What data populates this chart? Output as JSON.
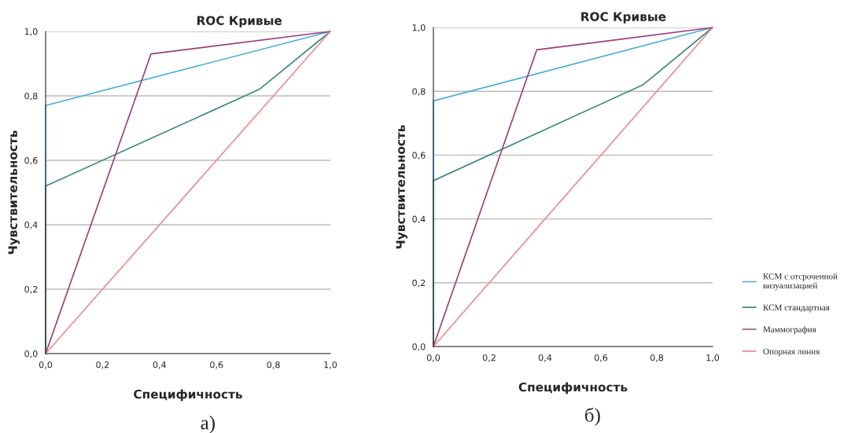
{
  "chart_data": [
    {
      "type": "line",
      "title": "ROC Кривые",
      "xlabel": "Специфичность",
      "ylabel": "Чувствительность",
      "annotations": [
        "а)"
      ],
      "xlim": [
        0,
        1
      ],
      "ylim": [
        0,
        1
      ],
      "xticks": [
        {
          "value": 0,
          "label": "0,0"
        },
        {
          "value": 0.2,
          "label": "0,2"
        },
        {
          "value": 0.4,
          "label": "0,4"
        },
        {
          "value": 0.6,
          "label": "0,6"
        },
        {
          "value": 0.8,
          "label": "0,8"
        },
        {
          "value": 1,
          "label": "1,0"
        }
      ],
      "yticks": [
        {
          "value": 0,
          "label": "0,0"
        },
        {
          "value": 0.2,
          "label": "0,2"
        },
        {
          "value": 0.4,
          "label": "0,4"
        },
        {
          "value": 0.6,
          "label": "0,6"
        },
        {
          "value": 0.8,
          "label": "0,8"
        },
        {
          "value": 1,
          "label": "1,0"
        }
      ],
      "grid": "y",
      "legend": false,
      "marker": "none",
      "line_style": "solid",
      "series": [
        {
          "color": "#4aaed8",
          "x": [
            0,
            0,
            1
          ],
          "values": [
            0,
            0.77,
            1
          ]
        },
        {
          "color": "#3d8a80",
          "x": [
            0,
            0,
            0.75,
            1
          ],
          "values": [
            0,
            0.52,
            0.82,
            1
          ]
        },
        {
          "color": "#9a3f78",
          "x": [
            0,
            0.37,
            1
          ],
          "values": [
            0,
            0.93,
            1
          ]
        },
        {
          "color": "#ef8a8a",
          "x": [
            0,
            1
          ],
          "values": [
            0,
            1
          ]
        }
      ]
    },
    {
      "type": "line",
      "title": "ROC Кривые",
      "xlabel": "Специфичность",
      "ylabel": "Чувствительность",
      "annotations": [
        "б)"
      ],
      "xlim": [
        0,
        1
      ],
      "ylim": [
        0,
        1
      ],
      "xticks": [
        {
          "value": 0,
          "label": "0,0"
        },
        {
          "value": 0.2,
          "label": "0,2"
        },
        {
          "value": 0.4,
          "label": "0,4"
        },
        {
          "value": 0.6,
          "label": "0,6"
        },
        {
          "value": 0.8,
          "label": "0,8"
        },
        {
          "value": 1,
          "label": "1,0"
        }
      ],
      "yticks": [
        {
          "value": 0,
          "label": "0,0"
        },
        {
          "value": 0.2,
          "label": "0,2"
        },
        {
          "value": 0.4,
          "label": "0,4"
        },
        {
          "value": 0.6,
          "label": "0,6"
        },
        {
          "value": 0.8,
          "label": "0,8"
        },
        {
          "value": 1,
          "label": "1,0"
        }
      ],
      "grid": "y",
      "legend": "right",
      "marker": "none",
      "line_style": "solid",
      "series": [
        {
          "name": "КСМ с отсроченной\nвизуализацией",
          "color": "#4aaed8",
          "x": [
            0,
            0,
            1
          ],
          "values": [
            0,
            0.77,
            1
          ]
        },
        {
          "name": "КСМ стандартная",
          "color": "#3d8a80",
          "x": [
            0,
            0,
            0.75,
            1
          ],
          "values": [
            0,
            0.52,
            0.82,
            1
          ]
        },
        {
          "name": "Маммография",
          "color": "#9a3f78",
          "x": [
            0,
            0.37,
            1
          ],
          "values": [
            0,
            0.93,
            1
          ]
        },
        {
          "name": "Опорная линия",
          "color": "#ef8a8a",
          "x": [
            0,
            1
          ],
          "values": [
            0,
            1
          ]
        }
      ]
    }
  ]
}
